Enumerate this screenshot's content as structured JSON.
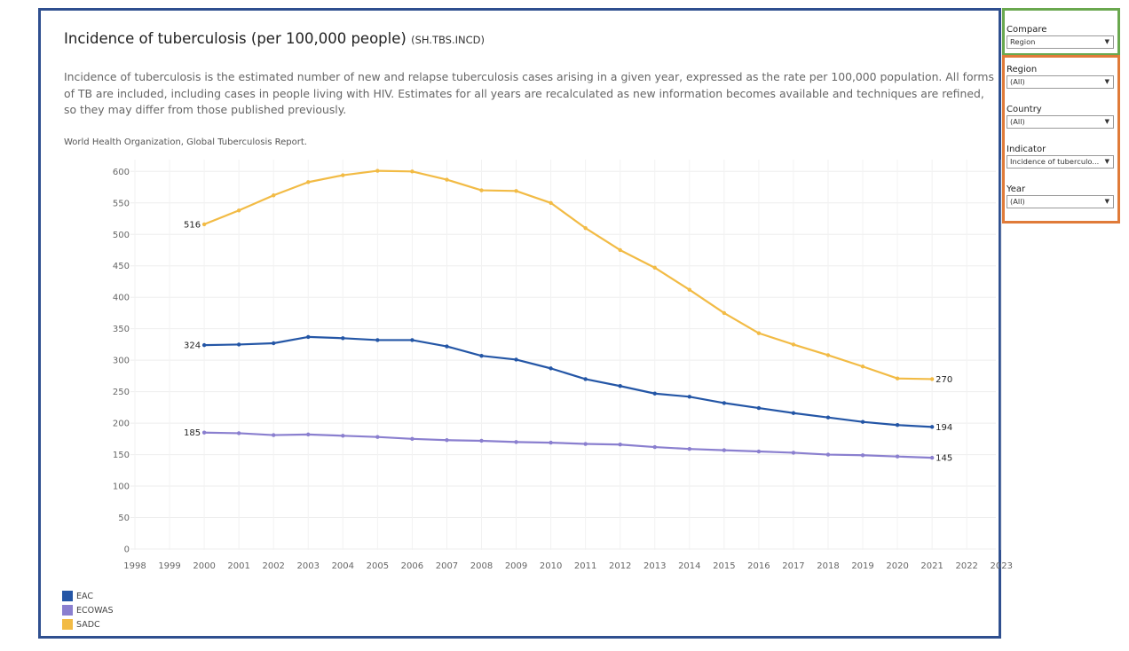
{
  "header": {
    "title": "Incidence of tuberculosis (per 100,000 people)",
    "code": "(SH.TBS.INCD)",
    "description": "Incidence of tuberculosis is the estimated number of new and relapse tuberculosis cases arising in a given year, expressed as the rate per 100,000 population. All forms of TB are included, including cases in people living with HIV. Estimates for all years are recalculated as new information becomes available and techniques are refined, so they may differ from those published previously.",
    "source": "World Health Organization, Global Tuberculosis Report."
  },
  "filters": {
    "compare": {
      "label": "Compare",
      "value": "Region"
    },
    "region": {
      "label": "Region",
      "value": "(All)"
    },
    "country": {
      "label": "Country",
      "value": "(All)"
    },
    "indicator": {
      "label": "Indicator",
      "value": "Incidence of tuberculo..."
    },
    "year": {
      "label": "Year",
      "value": "(All)"
    }
  },
  "chart_data": {
    "type": "line",
    "title": "Incidence of tuberculosis (per 100,000 people)",
    "xlabel": "",
    "ylabel": "",
    "ylim": [
      0,
      630
    ],
    "xlim": [
      1998,
      2023
    ],
    "y_ticks": [
      0,
      50,
      100,
      150,
      200,
      250,
      300,
      350,
      400,
      450,
      500,
      550,
      600
    ],
    "x_ticks": [
      1998,
      1999,
      2000,
      2001,
      2002,
      2003,
      2004,
      2005,
      2006,
      2007,
      2008,
      2009,
      2010,
      2011,
      2012,
      2013,
      2014,
      2015,
      2016,
      2017,
      2018,
      2019,
      2020,
      2021,
      2022,
      2023
    ],
    "x_tick_labels": [
      "1998",
      "1999",
      "2000",
      "2001",
      "2002",
      "2003",
      "2004",
      "2005",
      "2006",
      "2007",
      "2008",
      "2009",
      "2010",
      "2011",
      "2012",
      "2013",
      "2014",
      "2015",
      "2016",
      "2017",
      "2018",
      "2019",
      "2020",
      "2021",
      "2022",
      "2023"
    ],
    "grid": true,
    "legend": "bottom-left",
    "x": [
      2000,
      2001,
      2002,
      2003,
      2004,
      2005,
      2006,
      2007,
      2008,
      2009,
      2010,
      2011,
      2012,
      2013,
      2014,
      2015,
      2016,
      2017,
      2018,
      2019,
      2020,
      2021
    ],
    "series": [
      {
        "name": "EAC",
        "color": "#2456a6",
        "values": [
          324,
          325,
          327,
          337,
          335,
          332,
          332,
          322,
          307,
          301,
          287,
          270,
          259,
          247,
          242,
          232,
          224,
          216,
          209,
          202,
          197,
          194
        ],
        "label_first": "324",
        "label_last": "194"
      },
      {
        "name": "ECOWAS",
        "color": "#8a7fcf",
        "values": [
          185,
          184,
          181,
          182,
          180,
          178,
          175,
          173,
          172,
          170,
          169,
          167,
          166,
          162,
          159,
          157,
          155,
          153,
          150,
          149,
          147,
          145
        ],
        "label_first": "185",
        "label_last": "145"
      },
      {
        "name": "SADC",
        "color": "#f2bb45",
        "values": [
          516,
          538,
          562,
          583,
          594,
          601,
          600,
          587,
          570,
          569,
          550,
          510,
          475,
          447,
          412,
          375,
          343,
          325,
          308,
          290,
          271,
          270
        ],
        "label_first": "516",
        "label_last": "270"
      }
    ]
  }
}
